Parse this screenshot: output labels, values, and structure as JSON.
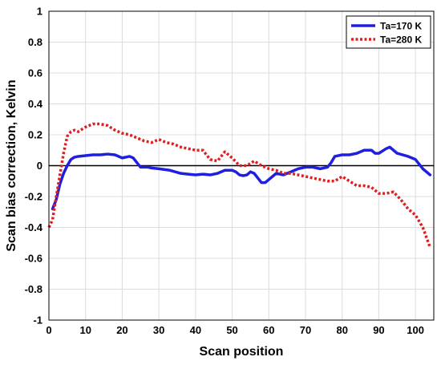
{
  "chart_data": {
    "type": "line",
    "title": "",
    "xlabel": "Scan position",
    "ylabel": "Scan bias correction, Kelvin",
    "xlim": [
      0,
      105
    ],
    "ylim": [
      -1,
      1
    ],
    "xticks": [
      0,
      10,
      20,
      30,
      40,
      50,
      60,
      70,
      80,
      90,
      100
    ],
    "yticks": [
      -1,
      -0.8,
      -0.6,
      -0.4,
      -0.2,
      0,
      0.2,
      0.4,
      0.6,
      0.8,
      1
    ],
    "ytick_labels": [
      "-1",
      "-0.8",
      "-0.6",
      "-0.4",
      "-0.2",
      "0",
      "0.2",
      "0.4",
      "0.6",
      "0.8",
      "1"
    ],
    "grid": true,
    "legend_position": "top-right",
    "reference_line": {
      "y": 0,
      "color": "#000000"
    },
    "series": [
      {
        "name": "Ta=170 K",
        "color": "#1f1fe0",
        "style": "solid",
        "x": [
          1,
          2,
          3,
          4,
          5,
          6,
          7,
          8,
          10,
          12,
          14,
          16,
          18,
          20,
          22,
          23,
          24,
          25,
          26,
          27,
          28,
          30,
          33,
          36,
          38,
          40,
          42,
          44,
          46,
          48,
          50,
          51,
          52,
          53,
          54,
          55,
          56,
          57,
          58,
          59,
          60,
          62,
          64,
          66,
          68,
          70,
          72,
          74,
          76,
          77,
          78,
          80,
          82,
          84,
          86,
          88,
          89,
          90,
          92,
          93,
          95,
          98,
          100,
          102,
          104
        ],
        "y": [
          -0.28,
          -0.22,
          -0.12,
          -0.05,
          0.0,
          0.04,
          0.055,
          0.06,
          0.065,
          0.07,
          0.07,
          0.075,
          0.07,
          0.05,
          0.06,
          0.05,
          0.02,
          -0.01,
          -0.01,
          -0.01,
          -0.015,
          -0.02,
          -0.03,
          -0.05,
          -0.055,
          -0.06,
          -0.055,
          -0.06,
          -0.05,
          -0.03,
          -0.03,
          -0.04,
          -0.06,
          -0.065,
          -0.06,
          -0.04,
          -0.05,
          -0.08,
          -0.11,
          -0.11,
          -0.09,
          -0.05,
          -0.06,
          -0.04,
          -0.02,
          -0.01,
          -0.01,
          -0.02,
          -0.01,
          0.02,
          0.06,
          0.07,
          0.07,
          0.08,
          0.1,
          0.1,
          0.08,
          0.08,
          0.11,
          0.12,
          0.08,
          0.06,
          0.04,
          -0.02,
          -0.06
        ]
      },
      {
        "name": "Ta=280 K",
        "color": "#e02020",
        "style": "dotted",
        "x": [
          0,
          1,
          2,
          3,
          4,
          5,
          6,
          7,
          8,
          10,
          12,
          14,
          16,
          18,
          20,
          22,
          24,
          26,
          28,
          30,
          32,
          34,
          36,
          38,
          40,
          42,
          44,
          46,
          47,
          48,
          50,
          52,
          54,
          56,
          58,
          60,
          62,
          64,
          66,
          68,
          70,
          72,
          74,
          76,
          78,
          80,
          82,
          84,
          86,
          88,
          90,
          92,
          94,
          96,
          98,
          100,
          102,
          104
        ],
        "y": [
          -0.4,
          -0.35,
          -0.2,
          -0.06,
          0.08,
          0.19,
          0.22,
          0.23,
          0.22,
          0.25,
          0.27,
          0.27,
          0.26,
          0.23,
          0.21,
          0.2,
          0.18,
          0.16,
          0.15,
          0.17,
          0.15,
          0.14,
          0.12,
          0.11,
          0.1,
          0.1,
          0.04,
          0.03,
          0.06,
          0.09,
          0.05,
          0.0,
          0.0,
          0.03,
          0.0,
          -0.02,
          -0.03,
          -0.05,
          -0.05,
          -0.06,
          -0.07,
          -0.08,
          -0.09,
          -0.1,
          -0.1,
          -0.07,
          -0.1,
          -0.13,
          -0.13,
          -0.14,
          -0.18,
          -0.18,
          -0.17,
          -0.22,
          -0.28,
          -0.32,
          -0.4,
          -0.53
        ]
      }
    ]
  }
}
